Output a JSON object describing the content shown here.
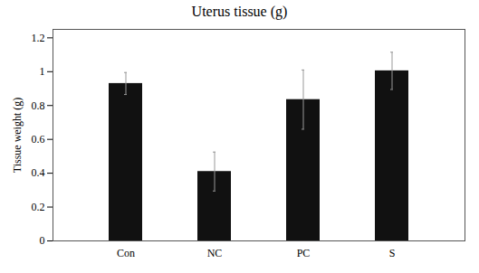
{
  "chart_data": {
    "type": "bar",
    "title": "Uterus tissue (g)",
    "categories": [
      "Con",
      "NC",
      "PC",
      "S"
    ],
    "values": [
      0.93,
      0.41,
      0.835,
      1.005
    ],
    "errors": [
      0.065,
      0.115,
      0.175,
      0.11
    ],
    "color": "#111111",
    "ylabel": "Tissue weight (g)",
    "ylim": [
      0,
      1.25
    ],
    "yticks": [
      0,
      0.2,
      0.4,
      0.6,
      0.8,
      1,
      1.2
    ],
    "grid": false
  }
}
